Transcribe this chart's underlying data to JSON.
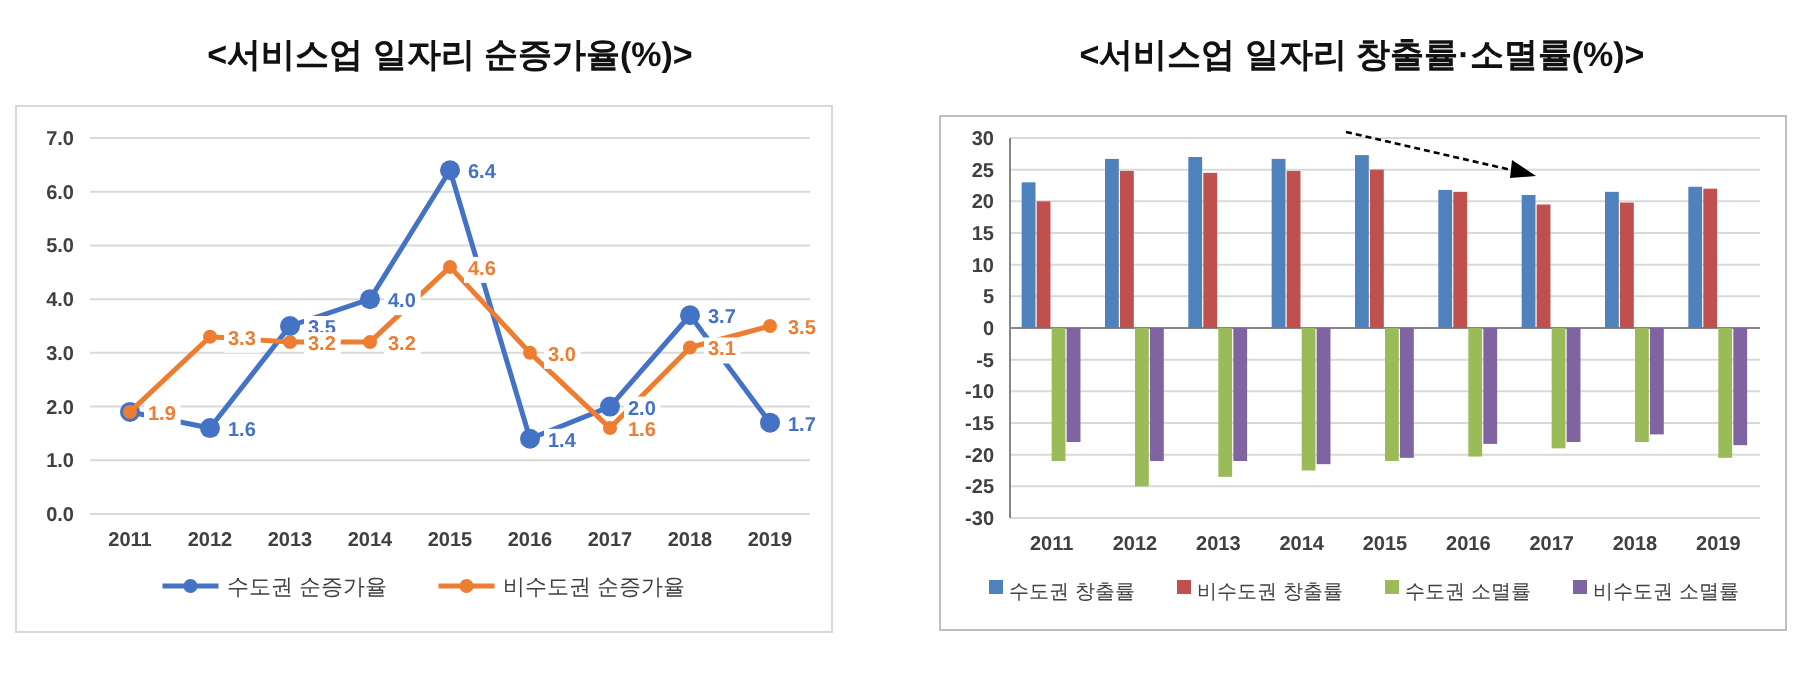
{
  "chart_data": [
    {
      "type": "line",
      "title": "<서비스업 일자리 순증가율(%)>",
      "categories": [
        "2011",
        "2012",
        "2013",
        "2014",
        "2015",
        "2016",
        "2017",
        "2018",
        "2019"
      ],
      "series": [
        {
          "name": "수도권 순증가율",
          "color": "#4472c4",
          "values": [
            1.9,
            1.6,
            3.5,
            4.0,
            6.4,
            1.4,
            2.0,
            3.7,
            1.7
          ],
          "value_labels": [
            null,
            "1.6",
            "3.5",
            "4.0",
            "6.4",
            "1.4",
            "2.0",
            "3.7",
            "1.7"
          ]
        },
        {
          "name": "비수도권 순증가율",
          "color": "#ed7d31",
          "values": [
            1.9,
            3.3,
            3.2,
            3.2,
            4.6,
            3.0,
            1.6,
            3.1,
            3.5
          ],
          "value_labels": [
            "1.9",
            "3.3",
            "3.2",
            "3.2",
            "4.6",
            "3.0",
            "1.6",
            "3.1",
            "3.5"
          ]
        }
      ],
      "ylim": [
        0,
        7
      ],
      "yticks": [
        {
          "value": 0,
          "label": "0.0"
        },
        {
          "value": 1,
          "label": "1.0"
        },
        {
          "value": 2,
          "label": "2.0"
        },
        {
          "value": 3,
          "label": "3.0"
        },
        {
          "value": 4,
          "label": "4.0"
        },
        {
          "value": 5,
          "label": "5.0"
        },
        {
          "value": 6,
          "label": "6.0"
        },
        {
          "value": 7,
          "label": "7.0"
        }
      ],
      "grid": "y",
      "legend": "bottom",
      "marker": "circle",
      "line_style": "solid"
    },
    {
      "type": "bar",
      "title": "<서비스업 일자리 창출률·소멸률(%)>",
      "categories": [
        "2011",
        "2012",
        "2013",
        "2014",
        "2015",
        "2016",
        "2017",
        "2018",
        "2019"
      ],
      "series": [
        {
          "name": "수도권 창출률",
          "color": "#4f81bd",
          "values": [
            23,
            26.7,
            27,
            26.7,
            27.3,
            21.8,
            21,
            21.5,
            22.3
          ]
        },
        {
          "name": "비수도권 창출률",
          "color": "#c0504d",
          "values": [
            20,
            24.8,
            24.5,
            24.8,
            25,
            21.5,
            19.5,
            19.8,
            22
          ]
        },
        {
          "name": "수도권 소멸률",
          "color": "#9bbb59",
          "values": [
            -21,
            -25,
            -23.5,
            -22.5,
            -21,
            -20.3,
            -19,
            -18,
            -20.5
          ]
        },
        {
          "name": "비수도권 소멸률",
          "color": "#8064a2",
          "values": [
            -18,
            -21,
            -21,
            -21.5,
            -20.5,
            -18.3,
            -18,
            -16.8,
            -18.5
          ]
        }
      ],
      "ylim": [
        -30,
        30
      ],
      "yticks": [
        -30,
        -25,
        -20,
        -15,
        -10,
        -5,
        0,
        5,
        10,
        15,
        20,
        25,
        30
      ],
      "grid": "y",
      "legend": "bottom"
    }
  ]
}
